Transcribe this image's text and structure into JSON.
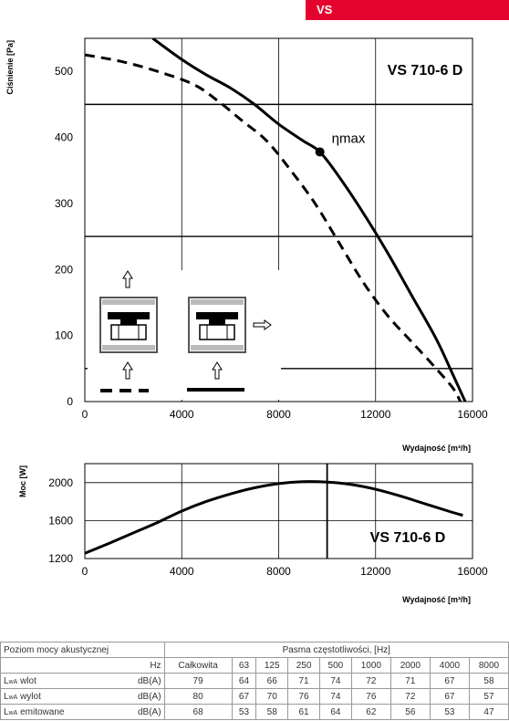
{
  "header": {
    "tag_label": "VS",
    "tag_color": "#e4032e"
  },
  "chart_data": [
    {
      "type": "line",
      "title": "VS 710-6 D",
      "xlabel": "Wydajność [m³/h]",
      "ylabel": "Ciśnienie [Pa]",
      "xlim": [
        0,
        16000
      ],
      "ylim": [
        0,
        550
      ],
      "xticks": [
        "0",
        "4000",
        "8000",
        "12000",
        "16000"
      ],
      "yticks": [
        "0",
        "100",
        "200",
        "300",
        "400",
        "500"
      ],
      "annotation": "ηmax",
      "eta_max_point": {
        "x": 9700,
        "y": 378
      },
      "grid": true,
      "series": [
        {
          "style": "solid",
          "x": [
            2800,
            4000,
            5000,
            6000,
            7000,
            8000,
            9000,
            9700,
            10500,
            11500,
            12500,
            13500,
            14500,
            15200,
            15700
          ],
          "y": [
            550,
            518,
            495,
            475,
            450,
            420,
            395,
            378,
            340,
            285,
            225,
            160,
            95,
            40,
            0
          ]
        },
        {
          "style": "dashed",
          "x": [
            0,
            1500,
            3000,
            4500,
            5500,
            6500,
            7500,
            8500,
            9500,
            10500,
            11500,
            12500,
            13500,
            14500,
            15200,
            15500
          ],
          "y": [
            525,
            515,
            500,
            480,
            455,
            425,
            395,
            350,
            300,
            240,
            180,
            130,
            90,
            50,
            20,
            0
          ]
        }
      ],
      "insets": [
        {
          "icon": "inlet-duct-fan-diagram-icon",
          "legend": "dashed"
        },
        {
          "icon": "free-inlet-fan-diagram-icon",
          "legend": "solid"
        }
      ]
    },
    {
      "type": "line",
      "title": "VS 710-6 D",
      "xlabel": "Wydajność [m³/h]",
      "ylabel": "Moc [W]",
      "xlim": [
        0,
        16000
      ],
      "ylim": [
        1200,
        2200
      ],
      "xticks": [
        "0",
        "4000",
        "8000",
        "12000",
        "16000"
      ],
      "yticks": [
        "1200",
        "1600",
        "2000"
      ],
      "marker_x": 10000,
      "series": [
        {
          "style": "solid",
          "x": [
            0,
            1000,
            2000,
            3000,
            4000,
            5000,
            6000,
            7000,
            8000,
            9000,
            10000,
            11000,
            12000,
            13000,
            14000,
            15000,
            15600
          ],
          "y": [
            1255,
            1360,
            1470,
            1580,
            1700,
            1800,
            1880,
            1945,
            1990,
            2010,
            2005,
            1980,
            1930,
            1860,
            1780,
            1700,
            1655
          ]
        }
      ]
    }
  ],
  "noise_table": {
    "title": "Poziom mocy akustycznej",
    "bands_title": "Pasma częstotliwości, [Hz]",
    "hz_label": "Hz",
    "columns": [
      "Całkowita",
      "63",
      "125",
      "250",
      "500",
      "1000",
      "2000",
      "4000",
      "8000"
    ],
    "rows": [
      {
        "name": "wlot",
        "unit": "dB(A)",
        "values": [
          "79",
          "64",
          "66",
          "71",
          "74",
          "72",
          "71",
          "67",
          "58"
        ]
      },
      {
        "name": "wylot",
        "unit": "dB(A)",
        "values": [
          "80",
          "67",
          "70",
          "76",
          "74",
          "76",
          "72",
          "67",
          "57"
        ]
      },
      {
        "name": "emitowane",
        "unit": "dB(A)",
        "values": [
          "68",
          "53",
          "58",
          "61",
          "64",
          "62",
          "56",
          "53",
          "47"
        ]
      }
    ],
    "lwa_main": "L",
    "lwa_sub": "wA"
  }
}
